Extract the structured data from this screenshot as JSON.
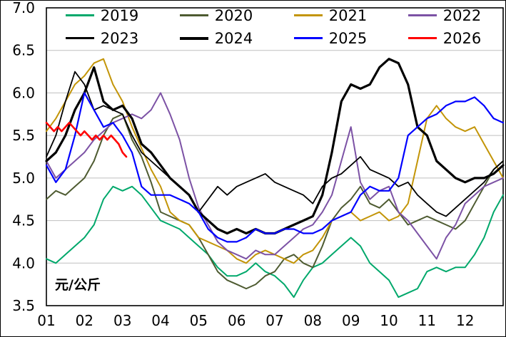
{
  "chart_data": {
    "type": "line",
    "title": "",
    "ylabel_unit": "元/公斤",
    "colors": {
      "grid": "#BFBFBF",
      "axis": "#000000",
      "background": "#FFFFFF"
    },
    "x_axis": {
      "ticks": [
        "01",
        "02",
        "03",
        "04",
        "05",
        "06",
        "07",
        "08",
        "09",
        "10",
        "11",
        "12"
      ],
      "domain": [
        1,
        13
      ]
    },
    "y_axis": {
      "ticks": [
        "7.0",
        "6.5",
        "6.0",
        "5.5",
        "5.0",
        "4.5",
        "4.0",
        "3.5"
      ],
      "min": 3.5,
      "max": 7.0
    },
    "grid": "horizontal",
    "legend_position": "top-inside-two-rows",
    "x_shared": [
      1,
      1.25,
      1.5,
      1.75,
      2,
      2.25,
      2.5,
      2.75,
      3,
      3.25,
      3.5,
      3.75,
      4,
      4.25,
      4.5,
      4.75,
      5,
      5.25,
      5.5,
      5.75,
      6,
      6.25,
      6.5,
      6.75,
      7,
      7.25,
      7.5,
      7.75,
      8,
      8.25,
      8.5,
      8.75,
      9,
      9.25,
      9.5,
      9.75,
      10,
      10.25,
      10.5,
      10.75,
      11,
      11.25,
      11.5,
      11.75,
      12,
      12.25,
      12.5,
      12.75,
      13
    ],
    "series": [
      {
        "name": "2019",
        "color": "#00A86B",
        "width": 2,
        "y": [
          4.05,
          4.0,
          4.1,
          4.2,
          4.3,
          4.45,
          4.75,
          4.9,
          4.85,
          4.9,
          4.8,
          4.65,
          4.5,
          4.45,
          4.4,
          4.3,
          4.2,
          4.1,
          3.95,
          3.85,
          3.85,
          3.9,
          4.0,
          3.9,
          3.85,
          3.75,
          3.6,
          3.8,
          3.95,
          4.0,
          4.1,
          4.2,
          4.3,
          4.2,
          4.0,
          3.9,
          3.8,
          3.6,
          3.65,
          3.7,
          3.9,
          3.95,
          3.9,
          3.95,
          3.95,
          4.1,
          4.3,
          4.6,
          4.8
        ]
      },
      {
        "name": "2020",
        "color": "#4E5B31",
        "width": 2,
        "y": [
          4.75,
          4.85,
          4.8,
          4.9,
          5.0,
          5.2,
          5.5,
          5.7,
          5.75,
          5.45,
          5.25,
          4.95,
          4.6,
          4.55,
          4.5,
          4.45,
          4.3,
          4.1,
          3.9,
          3.8,
          3.75,
          3.7,
          3.75,
          3.85,
          3.9,
          4.05,
          4.1,
          4.0,
          3.95,
          4.2,
          4.5,
          4.65,
          4.75,
          4.9,
          4.7,
          4.65,
          4.75,
          4.6,
          4.45,
          4.5,
          4.55,
          4.5,
          4.45,
          4.4,
          4.5,
          4.7,
          4.9,
          5.1,
          5.2
        ]
      },
      {
        "name": "2021",
        "color": "#C39508",
        "width": 2,
        "y": [
          5.55,
          5.7,
          5.9,
          6.1,
          6.2,
          6.35,
          6.4,
          6.1,
          5.9,
          5.6,
          5.35,
          5.1,
          4.9,
          4.6,
          4.5,
          4.45,
          4.3,
          4.25,
          4.2,
          4.15,
          4.05,
          4.0,
          4.1,
          4.15,
          4.1,
          4.05,
          4.0,
          4.1,
          4.15,
          4.3,
          4.5,
          4.55,
          4.6,
          4.5,
          4.55,
          4.6,
          4.5,
          4.55,
          4.7,
          5.2,
          5.7,
          5.85,
          5.7,
          5.6,
          5.55,
          5.6,
          5.4,
          5.2,
          5.0
        ]
      },
      {
        "name": "2022",
        "color": "#7C52A5",
        "width": 2,
        "y": [
          5.2,
          5.0,
          5.1,
          5.2,
          5.3,
          5.45,
          5.55,
          5.65,
          5.7,
          5.75,
          5.7,
          5.8,
          6.0,
          5.75,
          5.45,
          5.0,
          4.65,
          4.45,
          4.25,
          4.15,
          4.1,
          4.05,
          4.15,
          4.1,
          4.1,
          4.2,
          4.3,
          4.4,
          4.45,
          4.6,
          4.8,
          5.2,
          5.6,
          4.95,
          4.75,
          4.85,
          4.9,
          4.6,
          4.5,
          4.35,
          4.2,
          4.05,
          4.3,
          4.45,
          4.7,
          4.8,
          4.9,
          4.95,
          5.0
        ]
      },
      {
        "name": "2023",
        "color": "#000000",
        "width": 1.8,
        "y": [
          5.25,
          5.5,
          5.9,
          6.25,
          6.1,
          5.8,
          5.85,
          5.8,
          5.75,
          5.5,
          5.3,
          5.2,
          5.1,
          5.0,
          4.9,
          4.8,
          4.6,
          4.75,
          4.9,
          4.8,
          4.9,
          4.95,
          5.0,
          5.05,
          4.95,
          4.9,
          4.85,
          4.8,
          4.7,
          4.9,
          5.0,
          5.05,
          5.15,
          5.25,
          5.1,
          5.05,
          5.0,
          4.9,
          4.95,
          4.8,
          4.7,
          4.6,
          4.55,
          4.65,
          4.75,
          4.85,
          4.95,
          5.1,
          5.2
        ]
      },
      {
        "name": "2024",
        "color": "#000000",
        "width": 3.2,
        "y": [
          5.2,
          5.3,
          5.5,
          5.8,
          6.0,
          6.3,
          5.9,
          5.8,
          5.85,
          5.7,
          5.4,
          5.3,
          5.15,
          5.0,
          4.9,
          4.8,
          4.6,
          4.5,
          4.4,
          4.35,
          4.4,
          4.35,
          4.4,
          4.35,
          4.35,
          4.4,
          4.45,
          4.5,
          4.55,
          4.8,
          5.3,
          5.9,
          6.1,
          6.05,
          6.1,
          6.3,
          6.4,
          6.35,
          6.1,
          5.6,
          5.5,
          5.2,
          5.1,
          5.0,
          4.95,
          5.0,
          5.0,
          5.05,
          5.15
        ]
      },
      {
        "name": "2025",
        "color": "#0000FF",
        "width": 2.2,
        "y": [
          5.15,
          4.95,
          5.1,
          5.5,
          6.0,
          5.8,
          5.6,
          5.65,
          5.5,
          5.3,
          4.9,
          4.8,
          4.8,
          4.8,
          4.75,
          4.7,
          4.6,
          4.4,
          4.3,
          4.25,
          4.25,
          4.3,
          4.4,
          4.35,
          4.35,
          4.4,
          4.4,
          4.35,
          4.35,
          4.4,
          4.5,
          4.55,
          4.6,
          4.8,
          4.9,
          4.85,
          4.85,
          5.0,
          5.5,
          5.6,
          5.7,
          5.75,
          5.85,
          5.9,
          5.9,
          5.95,
          5.85,
          5.7,
          5.65
        ]
      },
      {
        "name": "2026",
        "color": "#FF0000",
        "width": 2.6,
        "x": [
          1,
          1.1,
          1.2,
          1.3,
          1.4,
          1.5,
          1.6,
          1.7,
          1.8,
          1.9,
          2,
          2.1,
          2.2,
          2.3,
          2.4,
          2.5,
          2.6,
          2.7,
          2.8,
          2.9,
          3,
          3.1
        ],
        "y": [
          5.65,
          5.6,
          5.55,
          5.6,
          5.55,
          5.6,
          5.65,
          5.6,
          5.55,
          5.5,
          5.55,
          5.5,
          5.45,
          5.5,
          5.45,
          5.5,
          5.45,
          5.5,
          5.45,
          5.4,
          5.3,
          5.25
        ]
      }
    ]
  }
}
